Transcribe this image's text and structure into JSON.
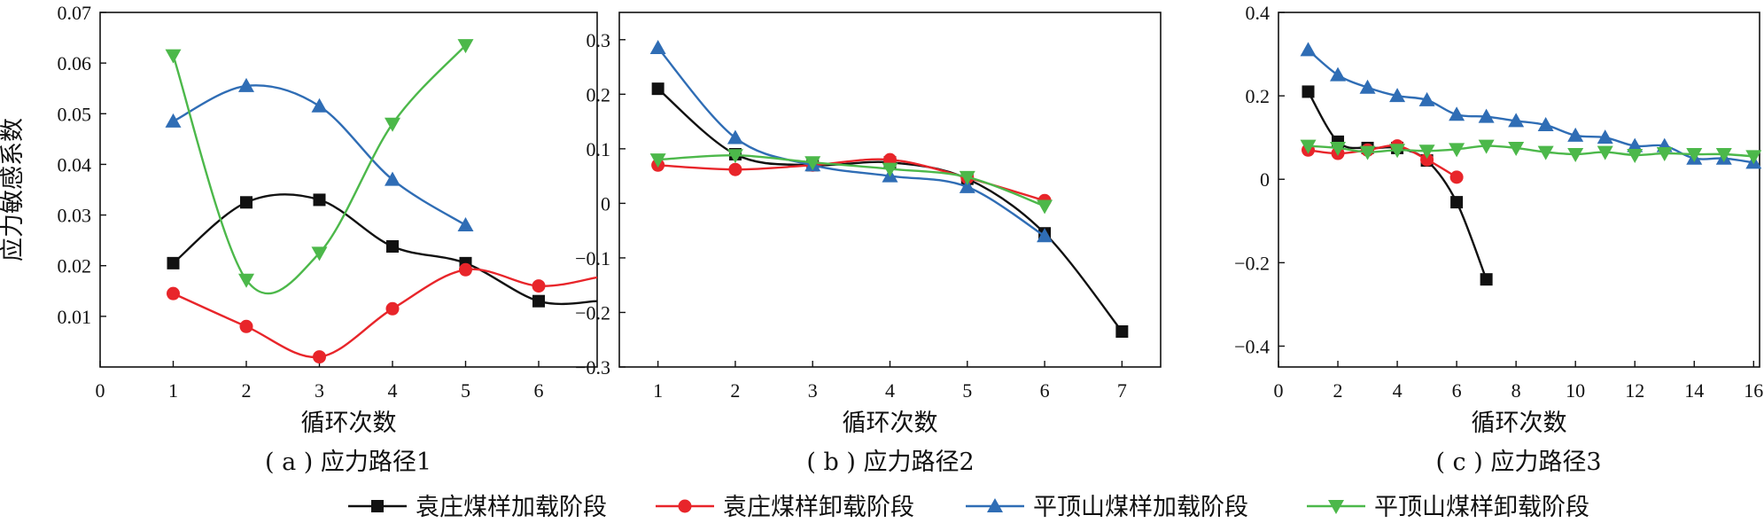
{
  "colors": {
    "s1": "#111111",
    "s2": "#e8252a",
    "s3": "#2f6db5",
    "s4": "#4cb84a"
  },
  "legend": {
    "items": [
      {
        "label": "袁庄煤样加载阶段",
        "marker": "square",
        "color": "#111111"
      },
      {
        "label": "袁庄煤样卸载阶段",
        "marker": "circle",
        "color": "#e8252a"
      },
      {
        "label": "平顶山煤样加载阶段",
        "marker": "triangle-up",
        "color": "#2f6db5"
      },
      {
        "label": "平顶山煤样卸载阶段",
        "marker": "triangle-down",
        "color": "#4cb84a"
      }
    ]
  },
  "chart_data": [
    {
      "type": "line",
      "caption": "( a ) 应力路径1",
      "xlabel": "循环次数",
      "ylabel": "应力敏感系数",
      "xlim": [
        0,
        6.8
      ],
      "ylim": [
        0,
        0.07
      ],
      "xticks": [
        0,
        1,
        2,
        3,
        4,
        5,
        6
      ],
      "yticks": [
        0.01,
        0.02,
        0.03,
        0.04,
        0.05,
        0.06,
        0.07
      ],
      "ytick_labels": [
        "0.01",
        "0.02",
        "0.03",
        "0.04",
        "0.05",
        "0.06",
        "0.07"
      ],
      "series": [
        {
          "name": "袁庄煤样加载阶段",
          "x": [
            1,
            2,
            3,
            4,
            5,
            6
          ],
          "y": [
            0.0205,
            0.0325,
            0.033,
            0.0238,
            0.0205,
            0.013
          ],
          "extend_to": 6.8
        },
        {
          "name": "袁庄煤样卸载阶段",
          "x": [
            1,
            2,
            3,
            4,
            5,
            6
          ],
          "y": [
            0.0145,
            0.008,
            0.002,
            0.0115,
            0.0192,
            0.016
          ],
          "extend_to": 6.8
        },
        {
          "name": "平顶山煤样加载阶段",
          "x": [
            1,
            2,
            3,
            4,
            5
          ],
          "y": [
            0.0485,
            0.0555,
            0.0515,
            0.037,
            0.028
          ]
        },
        {
          "name": "平顶山煤样卸载阶段",
          "x": [
            1,
            2,
            3,
            4,
            5
          ],
          "y": [
            0.0615,
            0.0172,
            0.0225,
            0.048,
            0.0635
          ]
        }
      ]
    },
    {
      "type": "line",
      "caption": "( b ) 应力路径2",
      "xlabel": "循环次数",
      "ylabel": "",
      "xlim": [
        0.5,
        7.5
      ],
      "ylim": [
        -0.3,
        0.35
      ],
      "xticks": [
        1,
        2,
        3,
        4,
        5,
        6,
        7
      ],
      "yticks": [
        -0.3,
        -0.2,
        -0.1,
        0,
        0.1,
        0.2,
        0.3
      ],
      "ytick_labels": [
        "−0.3",
        "−0.2",
        "−0.1",
        "0",
        "0.1",
        "0.2",
        "0.3"
      ],
      "series": [
        {
          "name": "袁庄煤样加载阶段",
          "x": [
            1,
            2,
            3,
            4,
            5,
            6,
            7
          ],
          "y": [
            0.21,
            0.09,
            0.07,
            0.075,
            0.045,
            -0.055,
            -0.235
          ]
        },
        {
          "name": "袁庄煤样卸载阶段",
          "x": [
            1,
            2,
            3,
            4,
            5,
            6
          ],
          "y": [
            0.07,
            0.062,
            0.07,
            0.08,
            0.047,
            0.005
          ]
        },
        {
          "name": "平顶山煤样加载阶段",
          "x": [
            1,
            2,
            3,
            4,
            5,
            6
          ],
          "y": [
            0.285,
            0.12,
            0.07,
            0.05,
            0.03,
            -0.06
          ]
        },
        {
          "name": "平顶山煤样卸载阶段",
          "x": [
            1,
            2,
            3,
            4,
            5,
            6
          ],
          "y": [
            0.08,
            0.088,
            0.075,
            0.063,
            0.048,
            -0.005
          ]
        }
      ]
    },
    {
      "type": "line",
      "caption": "( c ) 应力路径3",
      "xlabel": "循环次数",
      "ylabel": "",
      "xlim": [
        0,
        16.2
      ],
      "ylim": [
        -0.45,
        0.4
      ],
      "xticks": [
        0,
        2,
        4,
        6,
        8,
        10,
        12,
        14,
        16
      ],
      "yticks": [
        -0.4,
        -0.2,
        0,
        0.2,
        0.4
      ],
      "ytick_labels": [
        "−0.4",
        "−0.2",
        "0",
        "0.2",
        "0.4"
      ],
      "series": [
        {
          "name": "袁庄煤样加载阶段",
          "x": [
            1,
            2,
            3,
            4,
            5,
            6,
            7
          ],
          "y": [
            0.21,
            0.09,
            0.075,
            0.075,
            0.045,
            -0.055,
            -0.24
          ]
        },
        {
          "name": "袁庄煤样卸载阶段",
          "x": [
            1,
            2,
            3,
            4,
            5,
            6
          ],
          "y": [
            0.07,
            0.062,
            0.07,
            0.08,
            0.047,
            0.005
          ]
        },
        {
          "name": "平顶山煤样加载阶段",
          "x": [
            1,
            2,
            3,
            4,
            5,
            6,
            7,
            8,
            9,
            10,
            11,
            12,
            13,
            14,
            15,
            16
          ],
          "y": [
            0.31,
            0.25,
            0.22,
            0.2,
            0.19,
            0.155,
            0.15,
            0.14,
            0.13,
            0.105,
            0.1,
            0.08,
            0.08,
            0.05,
            0.05,
            0.04
          ]
        },
        {
          "name": "平顶山煤样卸载阶段",
          "x": [
            1,
            2,
            3,
            4,
            5,
            6,
            7,
            8,
            9,
            10,
            11,
            12,
            13,
            14,
            15,
            16
          ],
          "y": [
            0.08,
            0.075,
            0.065,
            0.07,
            0.068,
            0.072,
            0.08,
            0.075,
            0.065,
            0.06,
            0.065,
            0.058,
            0.062,
            0.06,
            0.06,
            0.055
          ]
        }
      ]
    }
  ]
}
